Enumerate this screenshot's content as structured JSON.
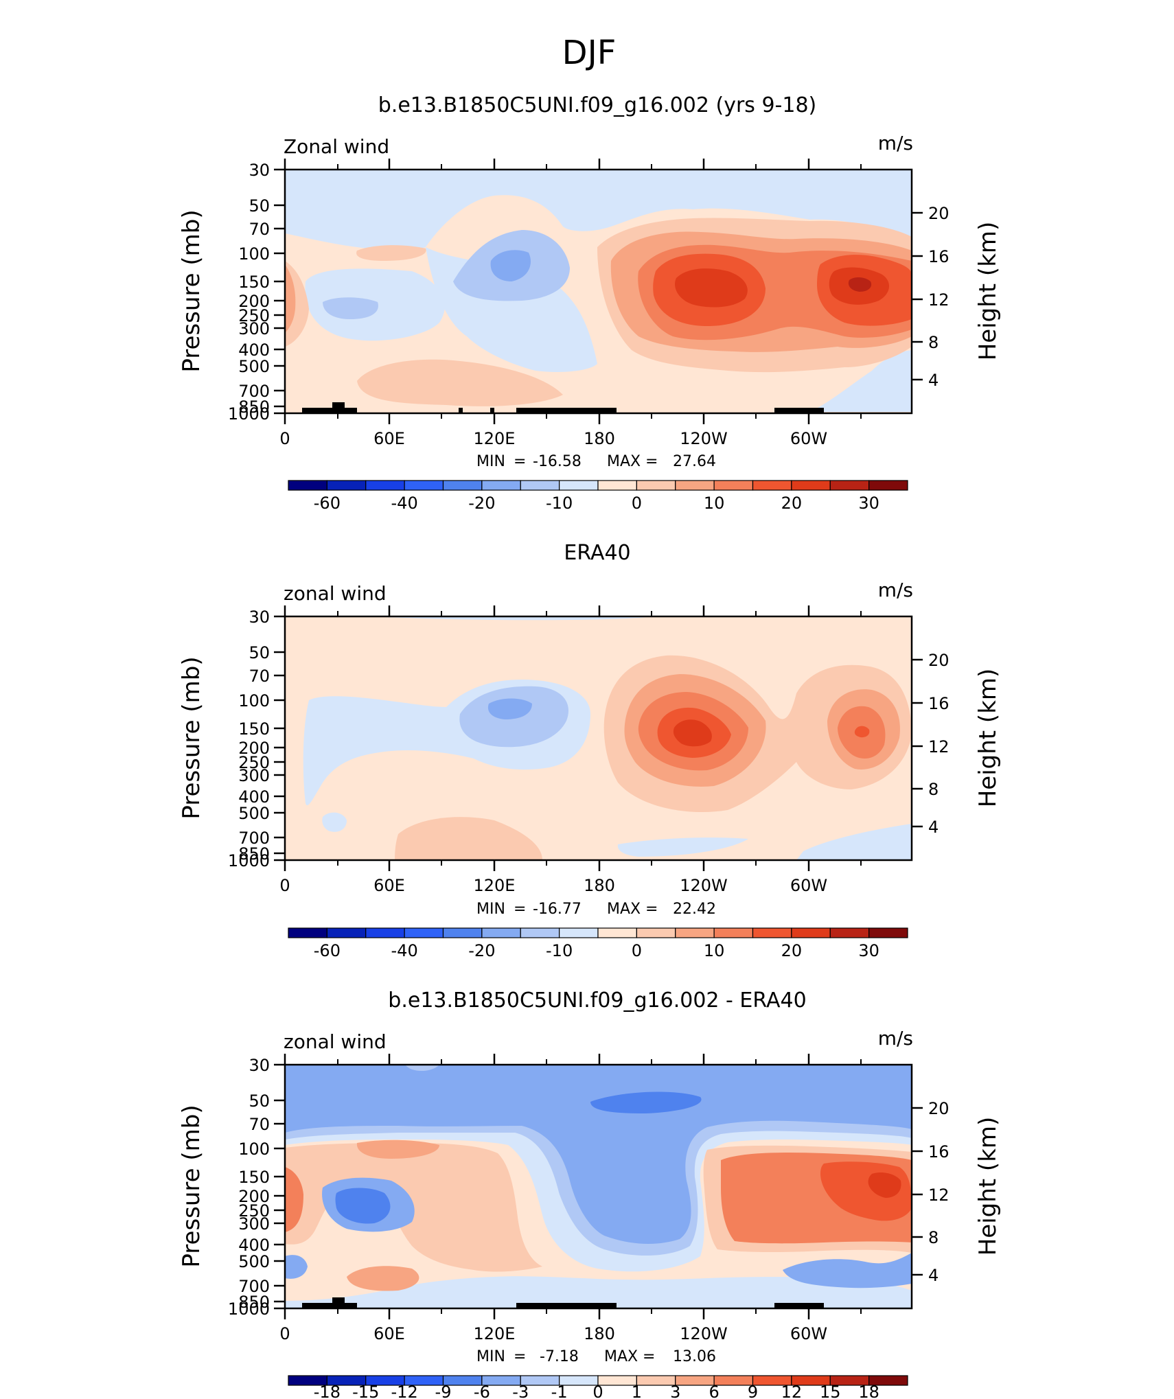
{
  "page_title": "DJF",
  "chart_data": [
    {
      "type": "heatmap",
      "title": "b.e13.B1850C5UNI.f09_g16.002 (yrs 9-18)",
      "left_label": "Zonal wind",
      "units": "m/s",
      "ylabel": "Pressure (mb)",
      "y2label": "Height (km)",
      "x_ticks": [
        "0",
        "60E",
        "120E",
        "180",
        "120W",
        "60W"
      ],
      "y_ticks": [
        "30",
        "50",
        "70",
        "100",
        "150",
        "200",
        "250",
        "300",
        "400",
        "500",
        "700",
        "850",
        "1000"
      ],
      "y2_ticks": [
        "20",
        "16",
        "12",
        "8",
        "4"
      ],
      "min_label": "MIN",
      "min": "-16.58",
      "max_label": "MAX",
      "max": "27.64",
      "stats_text": "MIN = -16.58 MAX = 27.64",
      "colorbar_labels": [
        "-60",
        "-40",
        "-20",
        "-10",
        "0",
        "10",
        "20",
        "30"
      ],
      "colorbar_colors": [
        "#00007f",
        "#0722b8",
        "#1840e6",
        "#2f62f7",
        "#4f82ee",
        "#84aaf2",
        "#b0c8f5",
        "#d6e6fb",
        "#ffe6d4",
        "#fbcab0",
        "#f7a582",
        "#f3805a",
        "#ef5630",
        "#df3b1a",
        "#b82315",
        "#7f0a0a"
      ]
    },
    {
      "type": "heatmap",
      "title": "ERA40",
      "left_label": "zonal wind",
      "units": "m/s",
      "ylabel": "Pressure (mb)",
      "y2label": "Height (km)",
      "x_ticks": [
        "0",
        "60E",
        "120E",
        "180",
        "120W",
        "60W"
      ],
      "y_ticks": [
        "30",
        "50",
        "70",
        "100",
        "150",
        "200",
        "250",
        "300",
        "400",
        "500",
        "700",
        "850",
        "1000"
      ],
      "y2_ticks": [
        "20",
        "16",
        "12",
        "8",
        "4"
      ],
      "min_label": "MIN",
      "min": "-16.77",
      "max_label": "MAX",
      "max": "22.42",
      "stats_text": "MIN = -16.77 MAX = 22.42",
      "colorbar_labels": [
        "-60",
        "-40",
        "-20",
        "-10",
        "0",
        "10",
        "20",
        "30"
      ],
      "colorbar_colors": [
        "#00007f",
        "#0722b8",
        "#1840e6",
        "#2f62f7",
        "#4f82ee",
        "#84aaf2",
        "#b0c8f5",
        "#d6e6fb",
        "#ffe6d4",
        "#fbcab0",
        "#f7a582",
        "#f3805a",
        "#ef5630",
        "#df3b1a",
        "#b82315",
        "#7f0a0a"
      ]
    },
    {
      "type": "heatmap",
      "title": "b.e13.B1850C5UNI.f09_g16.002 - ERA40",
      "left_label": "zonal wind",
      "units": "m/s",
      "ylabel": "Pressure (mb)",
      "y2label": "Height (km)",
      "x_ticks": [
        "0",
        "60E",
        "120E",
        "180",
        "120W",
        "60W"
      ],
      "y_ticks": [
        "30",
        "50",
        "70",
        "100",
        "150",
        "200",
        "250",
        "300",
        "400",
        "500",
        "700",
        "850",
        "1000"
      ],
      "y2_ticks": [
        "20",
        "16",
        "12",
        "8",
        "4"
      ],
      "min_label": "MIN",
      "min": "-7.18",
      "max_label": "MAX",
      "max": "13.06",
      "stats_text": "MIN = -7.18 MAX = 13.06",
      "colorbar_labels": [
        "-18",
        "-15",
        "-12",
        "-9",
        "-6",
        "-3",
        "-1",
        "0",
        "1",
        "3",
        "6",
        "9",
        "12",
        "15",
        "18"
      ],
      "colorbar_colors": [
        "#00007f",
        "#0722b8",
        "#1840e6",
        "#2f62f7",
        "#4f82ee",
        "#84aaf2",
        "#b0c8f5",
        "#d6e6fb",
        "#ffe6d4",
        "#fbcab0",
        "#f7a582",
        "#f3805a",
        "#ef5630",
        "#df3b1a",
        "#b82315",
        "#7f0a0a"
      ]
    }
  ]
}
